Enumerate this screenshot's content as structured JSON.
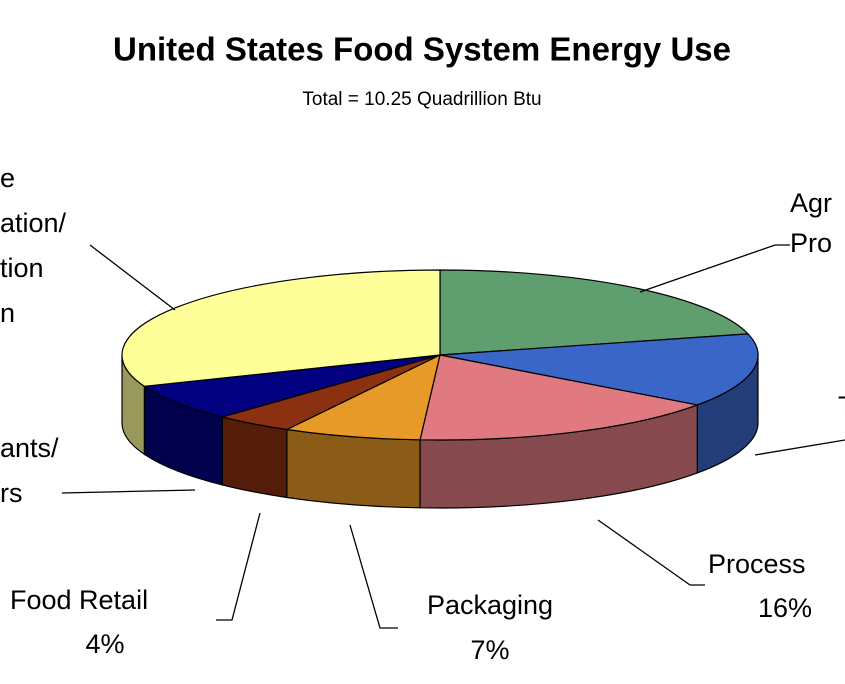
{
  "chart_data": {
    "type": "pie3d",
    "title": "United States Food System Energy Use",
    "subtitle": "Total = 10.25 Quadrillion Btu",
    "categories": [
      [
        "Agr",
        "Pro"
      ],
      [
        "T"
      ],
      [
        "Process"
      ],
      [
        "Packaging"
      ],
      [
        "Food Retail"
      ],
      [
        "ants/",
        "rs"
      ],
      [
        "e",
        "ation/",
        "tion",
        "n"
      ]
    ],
    "values": [
      21,
      14,
      16,
      7,
      4,
      7,
      31
    ],
    "value_labels": [
      null,
      null,
      "16%",
      "7%",
      "4%",
      null,
      null
    ],
    "colors": [
      "#5f9e6e",
      "#3a66c8",
      "#e07a80",
      "#e89a28",
      "#8b3010",
      "#000080",
      "#ffff99"
    ]
  }
}
